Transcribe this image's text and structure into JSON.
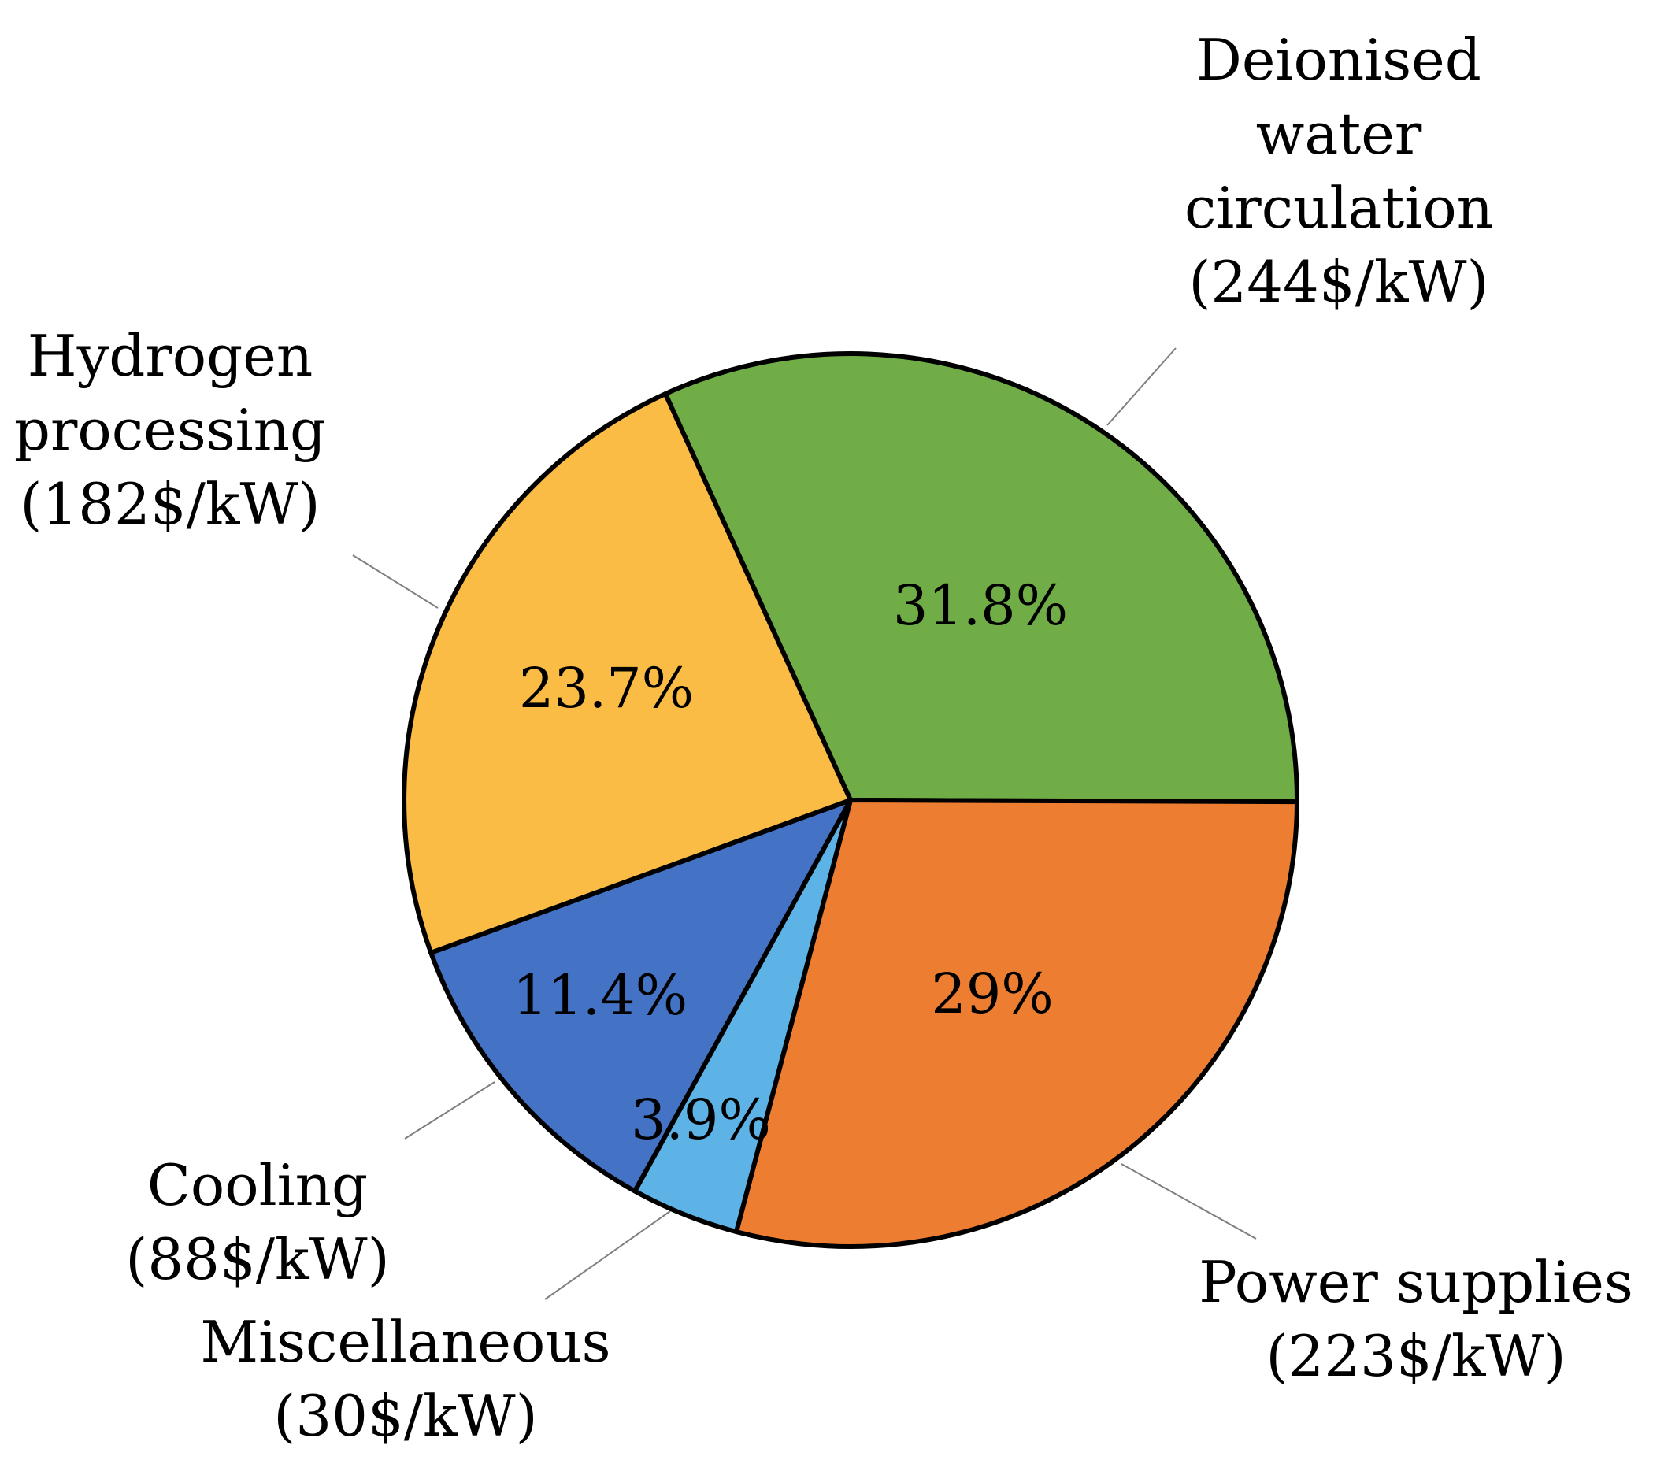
{
  "chart_data": {
    "type": "pie",
    "title": "",
    "legend": "none",
    "start_angle_deg": -24.5,
    "direction": "clockwise",
    "slices": [
      {
        "name": "Deionised water circulation",
        "lines": [
          "Deionised",
          "water",
          "circulation",
          "(244$/kW)"
        ],
        "cost": 244,
        "unit": "$/kW",
        "percent": 31.8,
        "label": "31.8%",
        "color": "#70AD47"
      },
      {
        "name": "Power supplies",
        "lines": [
          "Power supplies",
          "(223$/kW)"
        ],
        "cost": 223,
        "unit": "$/kW",
        "percent": 29.0,
        "label": "29%",
        "color": "#ED7D31"
      },
      {
        "name": "Miscellaneous",
        "lines": [
          "Miscellaneous",
          "(30$/kW)"
        ],
        "cost": 30,
        "unit": "$/kW",
        "percent": 3.9,
        "label": "3.9%",
        "color": "#5DB3E6"
      },
      {
        "name": "Cooling",
        "lines": [
          "Cooling",
          "(88$/kW)"
        ],
        "cost": 88,
        "unit": "$/kW",
        "percent": 11.4,
        "label": "11.4%",
        "color": "#4472C4"
      },
      {
        "name": "Hydrogen processing",
        "lines": [
          "Hydrogen",
          "processing",
          "(182$/kW)"
        ],
        "cost": 182,
        "unit": "$/kW",
        "percent": 23.7,
        "label": "23.7%",
        "color": "#FBBC45"
      }
    ]
  }
}
